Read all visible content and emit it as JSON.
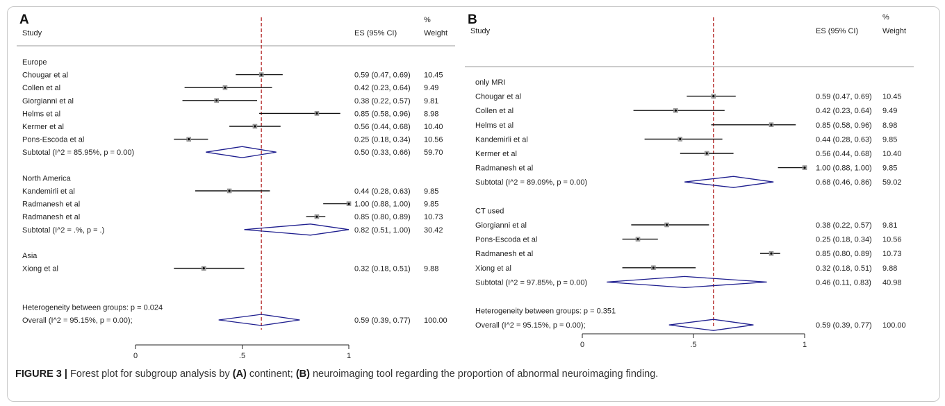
{
  "chart_data": [
    {
      "type": "forest",
      "panel_label": "A",
      "header": {
        "study": "Study",
        "es": "ES (95% CI)",
        "weight_pct": "%",
        "weight": "Weight"
      },
      "xlim": [
        0,
        1
      ],
      "x_ticks": [
        "0",
        ".5",
        "1"
      ],
      "x_tick_values": [
        0,
        0.5,
        1
      ],
      "reference_line": 0.59,
      "rows": [
        {
          "kind": "group",
          "label": "Europe"
        },
        {
          "kind": "study",
          "label": "Chougar et al",
          "es": 0.59,
          "lo": 0.47,
          "hi": 0.69,
          "ci_text": "0.59 (0.47, 0.69)",
          "weight": "10.45"
        },
        {
          "kind": "study",
          "label": "Collen et al",
          "es": 0.42,
          "lo": 0.23,
          "hi": 0.64,
          "ci_text": "0.42 (0.23, 0.64)",
          "weight": "9.49"
        },
        {
          "kind": "study",
          "label": "Giorgianni et al",
          "es": 0.38,
          "lo": 0.22,
          "hi": 0.57,
          "ci_text": "0.38 (0.22, 0.57)",
          "weight": "9.81"
        },
        {
          "kind": "study",
          "label": "Helms et al",
          "es": 0.85,
          "lo": 0.58,
          "hi": 0.96,
          "ci_text": "0.85 (0.58, 0.96)",
          "weight": "8.98"
        },
        {
          "kind": "study",
          "label": "Kermer et al",
          "es": 0.56,
          "lo": 0.44,
          "hi": 0.68,
          "ci_text": "0.56 (0.44, 0.68)",
          "weight": "10.40"
        },
        {
          "kind": "study",
          "label": "Pons-Escoda et al",
          "es": 0.25,
          "lo": 0.18,
          "hi": 0.34,
          "ci_text": "0.25 (0.18, 0.34)",
          "weight": "10.56"
        },
        {
          "kind": "subtotal",
          "label": "Subtotal  (I^2 = 85.95%, p = 0.00)",
          "es": 0.5,
          "lo": 0.33,
          "hi": 0.66,
          "ci_text": "0.50 (0.33, 0.66)",
          "weight": "59.70"
        },
        {
          "kind": "blank"
        },
        {
          "kind": "group",
          "label": "North America"
        },
        {
          "kind": "study",
          "label": "Kandemirli et al",
          "es": 0.44,
          "lo": 0.28,
          "hi": 0.63,
          "ci_text": "0.44 (0.28, 0.63)",
          "weight": "9.85"
        },
        {
          "kind": "study",
          "label": "Radmanesh et al",
          "es": 1.0,
          "lo": 0.88,
          "hi": 1.0,
          "ci_text": "1.00 (0.88, 1.00)",
          "weight": "9.85"
        },
        {
          "kind": "study",
          "label": "Radmanesh et al",
          "es": 0.85,
          "lo": 0.8,
          "hi": 0.89,
          "ci_text": "0.85 (0.80, 0.89)",
          "weight": "10.73"
        },
        {
          "kind": "subtotal",
          "label": "Subtotal  (I^2 = .%, p = .)",
          "es": 0.82,
          "lo": 0.51,
          "hi": 1.0,
          "ci_text": "0.82 (0.51, 1.00)",
          "weight": "30.42"
        },
        {
          "kind": "blank"
        },
        {
          "kind": "group",
          "label": "Asia"
        },
        {
          "kind": "study",
          "label": "Xiong et al",
          "es": 0.32,
          "lo": 0.18,
          "hi": 0.51,
          "ci_text": "0.32 (0.18, 0.51)",
          "weight": "9.88"
        },
        {
          "kind": "blank"
        },
        {
          "kind": "blank"
        },
        {
          "kind": "group",
          "label": "Heterogeneity between groups: p = 0.024"
        },
        {
          "kind": "overall",
          "label": "Overall  (I^2 = 95.15%, p = 0.00);",
          "es": 0.59,
          "lo": 0.39,
          "hi": 0.77,
          "ci_text": "0.59 (0.39, 0.77)",
          "weight": "100.00"
        }
      ]
    },
    {
      "type": "forest",
      "panel_label": "B",
      "header": {
        "study": "Study",
        "es": "ES (95% CI)",
        "weight_pct": "%",
        "weight": "Weight"
      },
      "xlim": [
        0,
        1
      ],
      "x_ticks": [
        "0",
        ".5",
        "1"
      ],
      "x_tick_values": [
        0,
        0.5,
        1
      ],
      "reference_line": 0.59,
      "rows": [
        {
          "kind": "group",
          "label": "only MRI"
        },
        {
          "kind": "study",
          "label": "Chougar et al",
          "es": 0.59,
          "lo": 0.47,
          "hi": 0.69,
          "ci_text": "0.59 (0.47, 0.69)",
          "weight": "10.45"
        },
        {
          "kind": "study",
          "label": "Collen et al",
          "es": 0.42,
          "lo": 0.23,
          "hi": 0.64,
          "ci_text": "0.42 (0.23, 0.64)",
          "weight": "9.49"
        },
        {
          "kind": "study",
          "label": "Helms et al",
          "es": 0.85,
          "lo": 0.58,
          "hi": 0.96,
          "ci_text": "0.85 (0.58, 0.96)",
          "weight": "8.98"
        },
        {
          "kind": "study",
          "label": "Kandemirli et al",
          "es": 0.44,
          "lo": 0.28,
          "hi": 0.63,
          "ci_text": "0.44 (0.28, 0.63)",
          "weight": "9.85"
        },
        {
          "kind": "study",
          "label": "Kermer et al",
          "es": 0.56,
          "lo": 0.44,
          "hi": 0.68,
          "ci_text": "0.56 (0.44, 0.68)",
          "weight": "10.40"
        },
        {
          "kind": "study",
          "label": "Radmanesh et al",
          "es": 1.0,
          "lo": 0.88,
          "hi": 1.0,
          "ci_text": "1.00 (0.88, 1.00)",
          "weight": "9.85"
        },
        {
          "kind": "subtotal",
          "label": "Subtotal  (I^2 = 89.09%, p = 0.00)",
          "es": 0.68,
          "lo": 0.46,
          "hi": 0.86,
          "ci_text": "0.68 (0.46, 0.86)",
          "weight": "59.02"
        },
        {
          "kind": "blank"
        },
        {
          "kind": "group",
          "label": "CT used"
        },
        {
          "kind": "study",
          "label": "Giorgianni et al",
          "es": 0.38,
          "lo": 0.22,
          "hi": 0.57,
          "ci_text": "0.38 (0.22, 0.57)",
          "weight": "9.81"
        },
        {
          "kind": "study",
          "label": "Pons-Escoda et al",
          "es": 0.25,
          "lo": 0.18,
          "hi": 0.34,
          "ci_text": "0.25 (0.18, 0.34)",
          "weight": "10.56"
        },
        {
          "kind": "study",
          "label": "Radmanesh et al",
          "es": 0.85,
          "lo": 0.8,
          "hi": 0.89,
          "ci_text": "0.85 (0.80, 0.89)",
          "weight": "10.73"
        },
        {
          "kind": "study",
          "label": "Xiong et al",
          "es": 0.32,
          "lo": 0.18,
          "hi": 0.51,
          "ci_text": "0.32 (0.18, 0.51)",
          "weight": "9.88"
        },
        {
          "kind": "subtotal",
          "label": "Subtotal  (I^2 = 97.85%, p = 0.00)",
          "es": 0.46,
          "lo": 0.11,
          "hi": 0.83,
          "ci_text": "0.46 (0.11, 0.83)",
          "weight": "40.98"
        },
        {
          "kind": "blank"
        },
        {
          "kind": "group",
          "label": "Heterogeneity between groups: p = 0.351"
        },
        {
          "kind": "overall",
          "label": "Overall  (I^2 = 95.15%, p = 0.00);",
          "es": 0.59,
          "lo": 0.39,
          "hi": 0.77,
          "ci_text": "0.59 (0.39, 0.77)",
          "weight": "100.00"
        }
      ]
    }
  ],
  "caption": {
    "figure_no": "FIGURE 3 |",
    "part1": " Forest plot for subgroup analysis by ",
    "a_label": "(A)",
    "part2": " continent; ",
    "b_label": "(B)",
    "part3": " neuroimaging tool regarding the proportion of abnormal neuroimaging finding."
  },
  "colors": {
    "diamond": "#1f1f8f",
    "reference_line": "#b22222",
    "ci_line": "#111111",
    "marker_box": "#a8a8a8",
    "text": "#222222"
  }
}
